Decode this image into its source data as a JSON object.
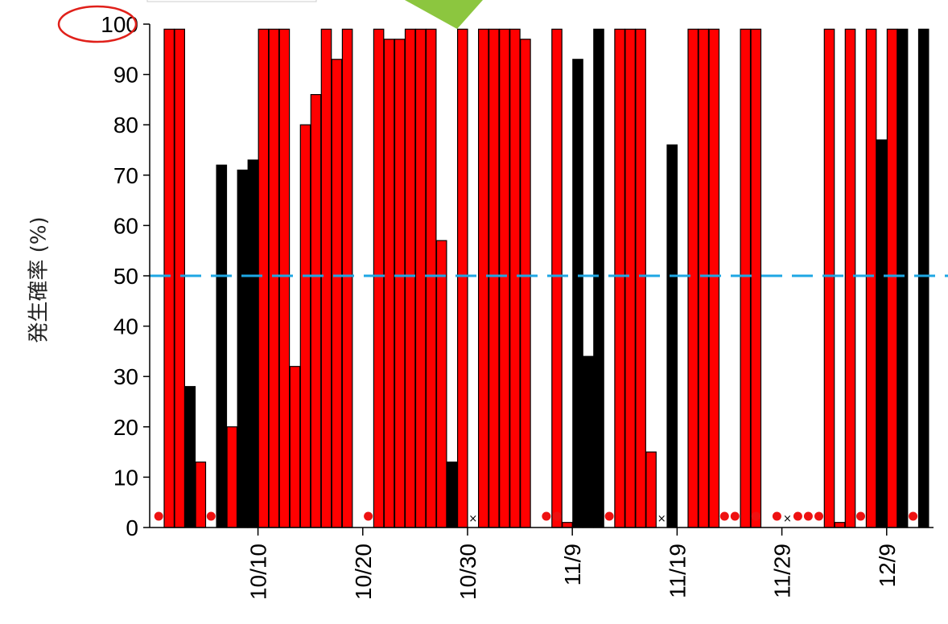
{
  "chart_data": {
    "type": "bar",
    "ylabel": "発生確率 (%)",
    "ylim": [
      0,
      100
    ],
    "yticks": [
      0,
      10,
      20,
      30,
      40,
      50,
      60,
      70,
      80,
      90,
      100
    ],
    "threshold": 50,
    "x_start_date": "10/1",
    "xticks": [
      {
        "day": 9,
        "label": "10/10"
      },
      {
        "day": 19,
        "label": "10/20"
      },
      {
        "day": 29,
        "label": "10/30"
      },
      {
        "day": 39,
        "label": "11/9"
      },
      {
        "day": 49,
        "label": "11/19"
      },
      {
        "day": 59,
        "label": "11/29"
      },
      {
        "day": 69,
        "label": "12/9"
      }
    ],
    "bars": [
      {
        "day": 1,
        "value": 99,
        "kind": "red"
      },
      {
        "day": 2,
        "value": 99,
        "kind": "red"
      },
      {
        "day": 3,
        "value": 28,
        "kind": "black"
      },
      {
        "day": 4,
        "value": 13,
        "kind": "red"
      },
      {
        "day": 6,
        "value": 72,
        "kind": "black"
      },
      {
        "day": 7,
        "value": 20,
        "kind": "red"
      },
      {
        "day": 8,
        "value": 71,
        "kind": "black"
      },
      {
        "day": 9,
        "value": 73,
        "kind": "black"
      },
      {
        "day": 10,
        "value": 99,
        "kind": "red"
      },
      {
        "day": 11,
        "value": 99,
        "kind": "red"
      },
      {
        "day": 12,
        "value": 99,
        "kind": "red"
      },
      {
        "day": 13,
        "value": 32,
        "kind": "red"
      },
      {
        "day": 14,
        "value": 80,
        "kind": "red"
      },
      {
        "day": 15,
        "value": 86,
        "kind": "red"
      },
      {
        "day": 16,
        "value": 99,
        "kind": "red"
      },
      {
        "day": 17,
        "value": 93,
        "kind": "red"
      },
      {
        "day": 18,
        "value": 99,
        "kind": "red"
      },
      {
        "day": 21,
        "value": 99,
        "kind": "red"
      },
      {
        "day": 22,
        "value": 97,
        "kind": "red"
      },
      {
        "day": 23,
        "value": 97,
        "kind": "red"
      },
      {
        "day": 24,
        "value": 99,
        "kind": "red"
      },
      {
        "day": 25,
        "value": 99,
        "kind": "red"
      },
      {
        "day": 26,
        "value": 99,
        "kind": "red"
      },
      {
        "day": 27,
        "value": 57,
        "kind": "red"
      },
      {
        "day": 28,
        "value": 13,
        "kind": "black"
      },
      {
        "day": 29,
        "value": 99,
        "kind": "red"
      },
      {
        "day": 31,
        "value": 99,
        "kind": "red"
      },
      {
        "day": 32,
        "value": 99,
        "kind": "red"
      },
      {
        "day": 33,
        "value": 99,
        "kind": "red"
      },
      {
        "day": 34,
        "value": 99,
        "kind": "red"
      },
      {
        "day": 35,
        "value": 97,
        "kind": "red"
      },
      {
        "day": 38,
        "value": 99,
        "kind": "red"
      },
      {
        "day": 39,
        "value": 1,
        "kind": "red"
      },
      {
        "day": 40,
        "value": 93,
        "kind": "black"
      },
      {
        "day": 41,
        "value": 34,
        "kind": "black"
      },
      {
        "day": 42,
        "value": 99,
        "kind": "black"
      },
      {
        "day": 44,
        "value": 99,
        "kind": "red"
      },
      {
        "day": 45,
        "value": 99,
        "kind": "red"
      },
      {
        "day": 46,
        "value": 99,
        "kind": "red"
      },
      {
        "day": 47,
        "value": 15,
        "kind": "red"
      },
      {
        "day": 49,
        "value": 76,
        "kind": "black"
      },
      {
        "day": 51,
        "value": 99,
        "kind": "red"
      },
      {
        "day": 52,
        "value": 99,
        "kind": "red"
      },
      {
        "day": 53,
        "value": 99,
        "kind": "red"
      },
      {
        "day": 56,
        "value": 99,
        "kind": "red"
      },
      {
        "day": 57,
        "value": 99,
        "kind": "red"
      },
      {
        "day": 64,
        "value": 99,
        "kind": "red"
      },
      {
        "day": 65,
        "value": 1,
        "kind": "red"
      },
      {
        "day": 66,
        "value": 99,
        "kind": "red"
      },
      {
        "day": 68,
        "value": 99,
        "kind": "red"
      },
      {
        "day": 69,
        "value": 77,
        "kind": "black"
      },
      {
        "day": 70,
        "value": 99,
        "kind": "red"
      },
      {
        "day": 71,
        "value": 99,
        "kind": "black"
      },
      {
        "day": 73,
        "value": 99,
        "kind": "black"
      }
    ],
    "dot_days": [
      0,
      5,
      20,
      37,
      38,
      43,
      54,
      55,
      57,
      59,
      61,
      62,
      63,
      67,
      72
    ],
    "cross_days": [
      30,
      48,
      60
    ],
    "colors": {
      "red_bar": "#ff0000",
      "black_bar": "#000000",
      "dot": "#ee1111",
      "threshold": "#1ea7e4",
      "highlight_circle": "#e0201a",
      "arrow": "#8cc63f"
    }
  }
}
